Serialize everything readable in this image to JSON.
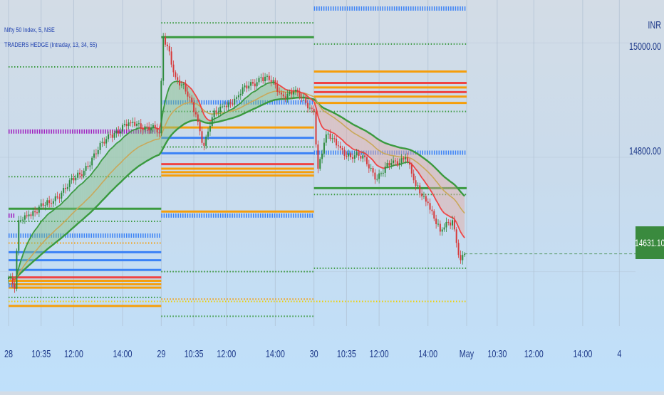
{
  "legend": {
    "symbol": "Nifty 50 Index, 5, NSE",
    "indicator": "TRADERS HEDGE (Intraday, 13, 34, 55)"
  },
  "price_axis": {
    "currency": "INR",
    "current_price": "14631.10",
    "badge_color": "#3a8a3e"
  },
  "colors": {
    "ema_fast": "#ef4444",
    "ema_mid": "#c9a85a",
    "ema_slow": "#3a9a3f",
    "candle_up": "#2e8b3e",
    "candle_down": "#d63a3a",
    "level_blue": "#3b82f6",
    "level_orange": "#f59e0b",
    "level_red": "#ef4444",
    "level_green": "#3a9a3f",
    "level_purple": "#a020c0",
    "level_yellow": "#f0d000"
  },
  "chart_data": {
    "type": "candlestick",
    "title": "Nifty 50 Index, 5, NSE",
    "indicator": "TRADERS HEDGE (Intraday, 13, 34, 55)",
    "y_tick_labels": [
      "15000.00",
      "14800.00",
      "14631.10"
    ],
    "ylim": [
      14505,
      15075
    ],
    "x_tick_labels": [
      "28",
      "10:35",
      "12:00",
      "14:00",
      "29",
      "10:35",
      "12:00",
      "14:00",
      "30",
      "10:35",
      "12:00",
      "14:00",
      "May",
      "10:30",
      "12:00",
      "14:00",
      "4"
    ],
    "x_ticks": [
      {
        "label": "28",
        "bar": 0
      },
      {
        "label": "10:35",
        "bar": 16
      },
      {
        "label": "12:00",
        "bar": 32
      },
      {
        "label": "14:00",
        "bar": 56
      },
      {
        "label": "29",
        "bar": 75
      },
      {
        "label": "10:35",
        "bar": 91
      },
      {
        "label": "12:00",
        "bar": 107
      },
      {
        "label": "14:00",
        "bar": 131
      },
      {
        "label": "30",
        "bar": 150
      },
      {
        "label": "10:35",
        "bar": 166
      },
      {
        "label": "12:00",
        "bar": 182
      },
      {
        "label": "14:00",
        "bar": 206
      },
      {
        "label": "May",
        "bar": 225
      },
      {
        "label": "10:30",
        "bar": 240
      },
      {
        "label": "12:00",
        "bar": 258
      },
      {
        "label": "14:00",
        "bar": 282
      },
      {
        "label": "4",
        "bar": 300
      }
    ],
    "price_keypoints": [
      [
        0,
        14590
      ],
      [
        3,
        14570
      ],
      [
        5,
        14690
      ],
      [
        10,
        14700
      ],
      [
        20,
        14720
      ],
      [
        35,
        14770
      ],
      [
        50,
        14840
      ],
      [
        60,
        14860
      ],
      [
        70,
        14852
      ],
      [
        74,
        14842
      ],
      [
        76,
        15010
      ],
      [
        79,
        14985
      ],
      [
        82,
        14940
      ],
      [
        87,
        14915
      ],
      [
        92,
        14875
      ],
      [
        96,
        14820
      ],
      [
        100,
        14870
      ],
      [
        106,
        14890
      ],
      [
        112,
        14905
      ],
      [
        118,
        14925
      ],
      [
        124,
        14940
      ],
      [
        128,
        14935
      ],
      [
        134,
        14910
      ],
      [
        140,
        14915
      ],
      [
        146,
        14895
      ],
      [
        150,
        14880
      ],
      [
        152,
        14780
      ],
      [
        156,
        14840
      ],
      [
        162,
        14820
      ],
      [
        168,
        14800
      ],
      [
        175,
        14800
      ],
      [
        181,
        14762
      ],
      [
        188,
        14790
      ],
      [
        195,
        14800
      ],
      [
        200,
        14750
      ],
      [
        206,
        14720
      ],
      [
        212,
        14670
      ],
      [
        218,
        14690
      ],
      [
        222,
        14620
      ],
      [
        224,
        14631.1
      ]
    ],
    "ema_periods": [
      13,
      34,
      55
    ],
    "levels": [
      {
        "from": 150,
        "to": 225,
        "price": 15060,
        "color": "blue",
        "style": "heavy"
      },
      {
        "from": 75,
        "to": 150,
        "price": 15035,
        "color": "green",
        "style": "dotted"
      },
      {
        "from": 75,
        "to": 150,
        "price": 15010,
        "color": "green",
        "style": "solid"
      },
      {
        "from": 150,
        "to": 225,
        "price": 14998,
        "color": "green",
        "style": "dotted"
      },
      {
        "from": 150,
        "to": 225,
        "price": 14950,
        "color": "orange",
        "style": "solid"
      },
      {
        "from": 150,
        "to": 225,
        "price": 14930,
        "color": "red",
        "style": "solid"
      },
      {
        "from": 150,
        "to": 225,
        "price": 14922,
        "color": "orange",
        "style": "solid"
      },
      {
        "from": 150,
        "to": 225,
        "price": 14914,
        "color": "red",
        "style": "solid"
      },
      {
        "from": 150,
        "to": 225,
        "price": 14906,
        "color": "orange",
        "style": "solid"
      },
      {
        "from": 150,
        "to": 225,
        "price": 14895,
        "color": "orange",
        "style": "solid"
      },
      {
        "from": 150,
        "to": 225,
        "price": 14880,
        "color": "green",
        "style": "dotted"
      },
      {
        "from": 0,
        "to": 75,
        "price": 14958,
        "color": "green",
        "style": "dotted"
      },
      {
        "from": 75,
        "to": 150,
        "price": 14896,
        "color": "blue",
        "style": "heavy"
      },
      {
        "from": 75,
        "to": 150,
        "price": 14880,
        "color": "green",
        "style": "dotted"
      },
      {
        "from": 75,
        "to": 150,
        "price": 14852,
        "color": "orange",
        "style": "solid"
      },
      {
        "from": 0,
        "to": 75,
        "price": 14845,
        "color": "purple",
        "style": "heavy"
      },
      {
        "from": 75,
        "to": 150,
        "price": 14834,
        "color": "blue",
        "style": "solid"
      },
      {
        "from": 75,
        "to": 150,
        "price": 14818,
        "color": "green",
        "style": "dotted"
      },
      {
        "from": 150,
        "to": 225,
        "price": 14808,
        "color": "blue",
        "style": "heavy"
      },
      {
        "from": 75,
        "to": 150,
        "price": 14807,
        "color": "blue",
        "style": "solid"
      },
      {
        "from": 75,
        "to": 150,
        "price": 14788,
        "color": "red",
        "style": "solid"
      },
      {
        "from": 75,
        "to": 150,
        "price": 14780,
        "color": "orange",
        "style": "solid"
      },
      {
        "from": 75,
        "to": 150,
        "price": 14774,
        "color": "orange",
        "style": "solid"
      },
      {
        "from": 75,
        "to": 150,
        "price": 14768,
        "color": "orange",
        "style": "solid"
      },
      {
        "from": 0,
        "to": 75,
        "price": 14766,
        "color": "green",
        "style": "dotted"
      },
      {
        "from": 150,
        "to": 225,
        "price": 14746,
        "color": "green",
        "style": "solid"
      },
      {
        "from": 150,
        "to": 225,
        "price": 14735,
        "color": "green",
        "style": "dotted"
      },
      {
        "from": 0,
        "to": 75,
        "price": 14710,
        "color": "green",
        "style": "solid"
      },
      {
        "from": 75,
        "to": 150,
        "price": 14705,
        "color": "orange",
        "style": "solid"
      },
      {
        "from": 75,
        "to": 150,
        "price": 14698,
        "color": "blue",
        "style": "heavy"
      },
      {
        "from": 0,
        "to": 3,
        "price": 14698,
        "color": "purple",
        "style": "heavy"
      },
      {
        "from": 0,
        "to": 75,
        "price": 14688,
        "color": "green",
        "style": "dotted"
      },
      {
        "from": 0,
        "to": 75,
        "price": 14663,
        "color": "blue",
        "style": "heavy"
      },
      {
        "from": 0,
        "to": 75,
        "price": 14650,
        "color": "orange",
        "style": "dotted"
      },
      {
        "from": 0,
        "to": 75,
        "price": 14634,
        "color": "blue",
        "style": "solid"
      },
      {
        "from": 0,
        "to": 75,
        "price": 14620,
        "color": "blue",
        "style": "solid"
      },
      {
        "from": 0,
        "to": 75,
        "price": 14603,
        "color": "blue",
        "style": "solid"
      },
      {
        "from": 150,
        "to": 225,
        "price": 14606,
        "color": "green",
        "style": "dotted"
      },
      {
        "from": 75,
        "to": 150,
        "price": 14600,
        "color": "green",
        "style": "dotted"
      },
      {
        "from": 0,
        "to": 75,
        "price": 14590,
        "color": "red",
        "style": "solid"
      },
      {
        "from": 0,
        "to": 75,
        "price": 14584,
        "color": "orange",
        "style": "solid"
      },
      {
        "from": 0,
        "to": 75,
        "price": 14578,
        "color": "orange",
        "style": "solid"
      },
      {
        "from": 0,
        "to": 75,
        "price": 14572,
        "color": "orange",
        "style": "solid"
      },
      {
        "from": 0,
        "to": 3,
        "price": 14576,
        "color": "blue",
        "style": "heavy"
      },
      {
        "from": 0,
        "to": 75,
        "price": 14555,
        "color": "green",
        "style": "dotted"
      },
      {
        "from": 75,
        "to": 150,
        "price": 14552,
        "color": "orange",
        "style": "dotted"
      },
      {
        "from": 0,
        "to": 225,
        "price": 14548,
        "color": "yellow",
        "style": "dotted"
      },
      {
        "from": 0,
        "to": 75,
        "price": 14540,
        "color": "orange",
        "style": "solid"
      },
      {
        "from": 75,
        "to": 150,
        "price": 14522,
        "color": "green",
        "style": "dotted"
      }
    ]
  }
}
